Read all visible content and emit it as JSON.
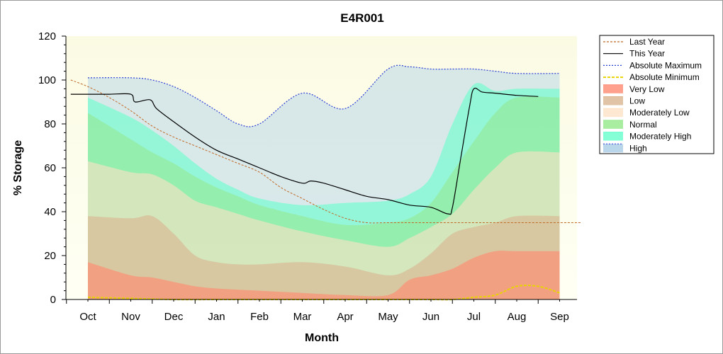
{
  "chart_data": {
    "type": "area",
    "title": "E4R001",
    "xlabel": "Month",
    "ylabel": "% Storage",
    "ylim": [
      0,
      120
    ],
    "yticks": [
      "0",
      "20",
      "40",
      "60",
      "80",
      "100",
      "120"
    ],
    "categories": [
      "Oct",
      "Nov",
      "Dec",
      "Jan",
      "Feb",
      "Mar",
      "Apr",
      "May",
      "Jun",
      "Jul",
      "Aug",
      "Sep"
    ],
    "legend_position": "right",
    "legend": [
      {
        "label": "Last Year",
        "kind": "line",
        "color": "#c06a28",
        "dash": "3,2"
      },
      {
        "label": "This Year",
        "kind": "line",
        "color": "#000000",
        "dash": ""
      },
      {
        "label": "Absolute Maximum",
        "kind": "line",
        "color": "#2b3fd6",
        "dash": "2,2"
      },
      {
        "label": "Absolute Minimum",
        "kind": "line",
        "color": "#e8d400",
        "dash": "4,2"
      },
      {
        "label": "Very Low",
        "kind": "band",
        "color": "#ff8a70"
      },
      {
        "label": "Low",
        "kind": "band",
        "color": "#d9b48f"
      },
      {
        "label": "Moderately Low",
        "kind": "band",
        "color": "#ffe2c6"
      },
      {
        "label": "Normal",
        "kind": "band",
        "color": "#94e88a"
      },
      {
        "label": "Moderately High",
        "kind": "band",
        "color": "#66ffcc"
      },
      {
        "label": "High",
        "kind": "band",
        "color": "#a8cce6"
      }
    ],
    "band_x": [
      0,
      1,
      1.5,
      2,
      2.5,
      3,
      3.5,
      4,
      5,
      6,
      7,
      7.5,
      8,
      8.5,
      9,
      9.5,
      10,
      11
    ],
    "bands": {
      "Very Low": [
        17,
        11,
        10,
        8,
        6,
        5,
        4.5,
        4,
        3,
        2,
        2,
        9,
        11,
        14,
        19,
        22,
        22,
        22
      ],
      "Low": [
        38,
        37,
        38,
        30,
        20,
        17,
        16,
        16,
        17,
        15,
        11,
        14,
        21,
        30,
        33,
        35,
        38,
        38
      ],
      "Moderately Low": [
        63,
        58,
        57,
        52,
        45,
        42,
        39,
        36,
        31,
        27,
        24,
        28,
        33,
        39,
        50,
        60,
        67,
        67
      ],
      "Normal": [
        85,
        73,
        67,
        62,
        56,
        51,
        47,
        43,
        38,
        34,
        35,
        37,
        44,
        58,
        72,
        85,
        92,
        92
      ],
      "Moderately High": [
        92,
        83,
        77,
        70,
        62,
        55,
        50,
        46,
        43,
        44,
        45,
        48,
        56,
        80,
        98,
        95,
        96,
        96
      ],
      "High": [
        101,
        101,
        100,
        97,
        92,
        86,
        80,
        80,
        94,
        87,
        105,
        106,
        105,
        105,
        105,
        104,
        103,
        103
      ]
    },
    "series": [
      {
        "name": "Last Year",
        "x": [
          -0.4,
          0,
          0.5,
          1,
          1.5,
          2,
          2.5,
          3,
          3.5,
          4,
          4.5,
          5,
          5.5,
          6,
          6.5,
          7,
          8,
          9,
          10,
          11.5
        ],
        "y": [
          100,
          97,
          92,
          86,
          79,
          74,
          70,
          66,
          62,
          58,
          51,
          46,
          41,
          37,
          35,
          35,
          35,
          35,
          35,
          35
        ]
      },
      {
        "name": "This Year",
        "x": [
          -0.4,
          0,
          0.5,
          1,
          1.1,
          1.45,
          1.6,
          2,
          2.5,
          3,
          3.5,
          4,
          4.5,
          5,
          5.2,
          5.5,
          6,
          6.5,
          7,
          7.5,
          8,
          8.4,
          8.5,
          8.7,
          8.9,
          9,
          9.2,
          9.5,
          10,
          10.5
        ],
        "y": [
          93.5,
          93.5,
          93.5,
          93.5,
          90,
          91,
          87,
          81,
          74,
          68,
          64,
          60,
          56,
          53,
          54,
          53,
          50,
          47,
          45.5,
          43,
          42,
          39,
          42,
          65,
          88,
          96,
          94.5,
          94,
          93,
          92.5
        ]
      },
      {
        "name": "Absolute Minimum",
        "x": [
          0,
          1,
          2,
          3,
          4,
          5,
          6,
          7,
          8,
          8.5,
          9,
          9.5,
          10,
          10.5,
          11
        ],
        "y": [
          1,
          0.5,
          0,
          0,
          0,
          0,
          0,
          0,
          0,
          0,
          1,
          2,
          6,
          6,
          3
        ]
      }
    ]
  }
}
